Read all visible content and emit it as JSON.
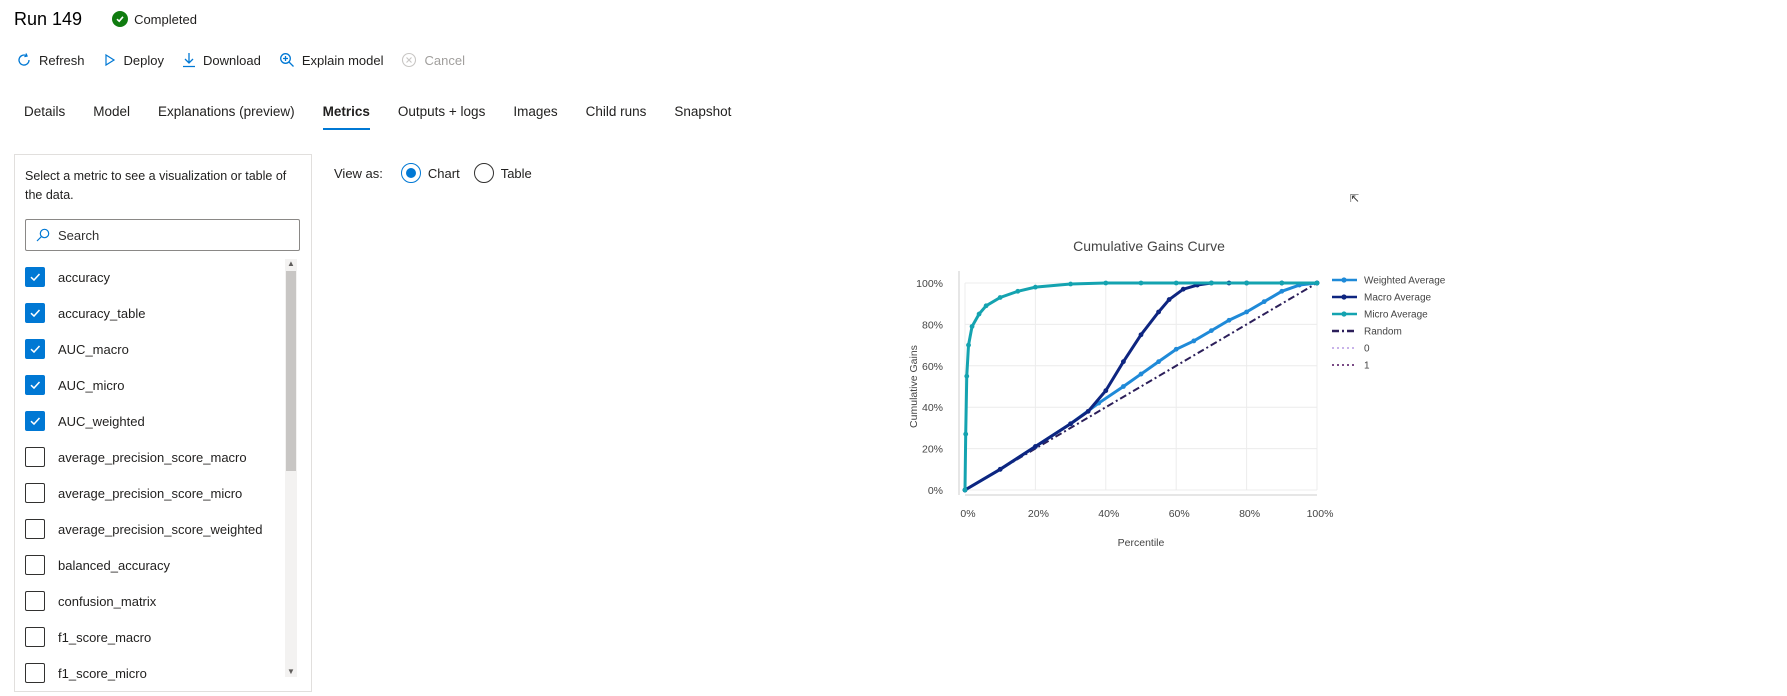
{
  "run": {
    "title": "Run 149",
    "status": "Completed"
  },
  "toolbar": {
    "refresh": "Refresh",
    "deploy": "Deploy",
    "download": "Download",
    "explain": "Explain model",
    "cancel": "Cancel"
  },
  "tabs": [
    "Details",
    "Model",
    "Explanations (preview)",
    "Metrics",
    "Outputs + logs",
    "Images",
    "Child runs",
    "Snapshot"
  ],
  "active_tab": "Metrics",
  "sidebar": {
    "description": "Select a metric to see a visualization or table of the data.",
    "search_placeholder": "Search",
    "metrics": [
      {
        "label": "accuracy",
        "checked": true
      },
      {
        "label": "accuracy_table",
        "checked": true
      },
      {
        "label": "AUC_macro",
        "checked": true
      },
      {
        "label": "AUC_micro",
        "checked": true
      },
      {
        "label": "AUC_weighted",
        "checked": true
      },
      {
        "label": "average_precision_score_macro",
        "checked": false
      },
      {
        "label": "average_precision_score_micro",
        "checked": false
      },
      {
        "label": "average_precision_score_weighted",
        "checked": false
      },
      {
        "label": "balanced_accuracy",
        "checked": false
      },
      {
        "label": "confusion_matrix",
        "checked": false
      },
      {
        "label": "f1_score_macro",
        "checked": false
      },
      {
        "label": "f1_score_micro",
        "checked": false
      }
    ]
  },
  "view_as": {
    "label": "View as:",
    "options": [
      "Chart",
      "Table"
    ],
    "selected": "Chart"
  },
  "chart_data": {
    "type": "line",
    "title": "Cumulative Gains Curve",
    "xlabel": "Percentile",
    "ylabel": "Cumulative Gains",
    "xlim": [
      0,
      100
    ],
    "ylim": [
      0,
      100
    ],
    "x_ticks": [
      "0%",
      "20%",
      "40%",
      "60%",
      "80%",
      "100%"
    ],
    "y_ticks": [
      "0%",
      "20%",
      "40%",
      "60%",
      "80%",
      "100%"
    ],
    "grid": true,
    "legend_position": "right",
    "series": [
      {
        "name": "Weighted Average",
        "color": "#1f8ad8",
        "style": "solid-markers",
        "x": [
          0,
          10,
          20,
          30,
          38,
          45,
          50,
          55,
          60,
          65,
          70,
          75,
          80,
          85,
          90,
          95,
          100
        ],
        "y": [
          0,
          10,
          21,
          32,
          42,
          50,
          56,
          62,
          68,
          72,
          77,
          82,
          86,
          91,
          96,
          99,
          100
        ]
      },
      {
        "name": "Macro Average",
        "color": "#0e2580",
        "style": "solid-markers",
        "x": [
          0,
          10,
          20,
          30,
          35,
          40,
          45,
          50,
          55,
          58,
          62,
          66,
          70,
          75,
          80,
          90,
          100
        ],
        "y": [
          0,
          10,
          21,
          32,
          38,
          48,
          62,
          75,
          86,
          92,
          97,
          99,
          100,
          100,
          100,
          100,
          100
        ]
      },
      {
        "name": "Micro Average",
        "color": "#14a3b0",
        "style": "solid-markers",
        "x": [
          0,
          0.2,
          0.5,
          1,
          2,
          4,
          6,
          10,
          15,
          20,
          30,
          40,
          50,
          60,
          70,
          80,
          90,
          100
        ],
        "y": [
          0,
          27,
          55,
          70,
          79,
          85,
          89,
          93,
          96,
          98,
          99.5,
          100,
          100,
          100,
          100,
          100,
          100,
          100
        ]
      },
      {
        "name": "Random",
        "color": "#2c1f5a",
        "style": "dashdot",
        "x": [
          0,
          100
        ],
        "y": [
          0,
          100
        ]
      },
      {
        "name": "0",
        "color": "#c9b3ea",
        "style": "dotted",
        "x": [],
        "y": []
      },
      {
        "name": "1",
        "color": "#7a4b86",
        "style": "dotted",
        "x": [],
        "y": []
      }
    ]
  }
}
